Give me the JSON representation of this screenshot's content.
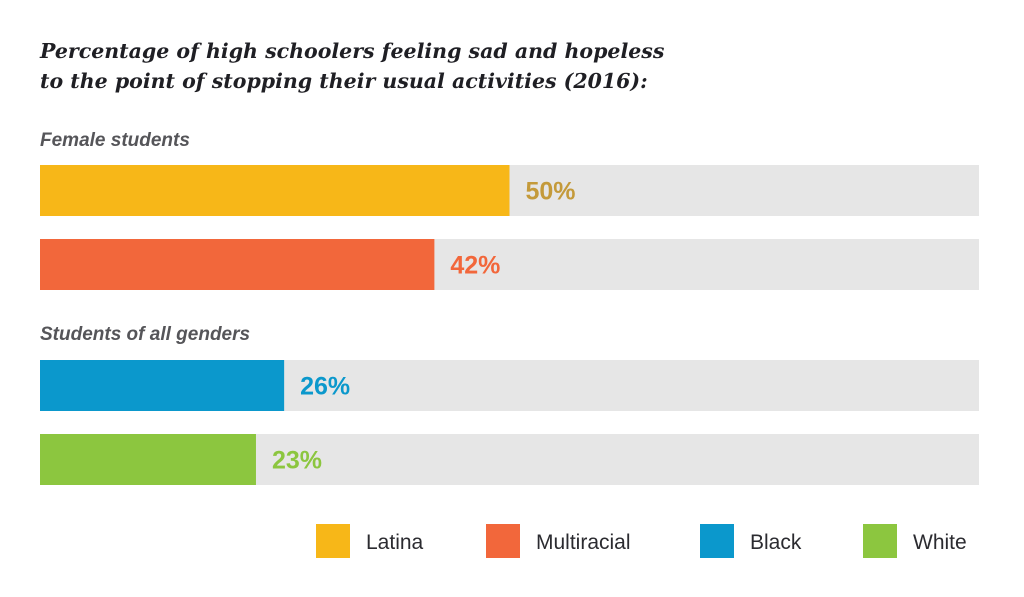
{
  "title": {
    "line1": "Percentage of high schoolers feeling sad and hopeless",
    "line2": "to the point of stopping their usual activities (2016):"
  },
  "groups": [
    {
      "heading": "Female students"
    },
    {
      "heading": "Students of all genders"
    }
  ],
  "colors": {
    "Latina": "#f7b718",
    "Multiracial": "#f2673b",
    "Black": "#0b98cc",
    "White": "#8cc63f",
    "track": "#e6e6e6",
    "Latina_label": "#c49a3a"
  },
  "chart_data": {
    "type": "bar",
    "orientation": "horizontal",
    "title": "Percentage of high schoolers feeling sad and hopeless to the point of stopping their usual activities (2016):",
    "xlim": [
      0,
      100
    ],
    "unit": "%",
    "legend": {
      "placement": "bottom-right",
      "entries": [
        "Latina",
        "Multiracial",
        "Black",
        "White"
      ]
    },
    "groups": [
      {
        "heading": "Female students",
        "bars": [
          {
            "category": "Latina",
            "value": 50,
            "label": "50%"
          },
          {
            "category": "Multiracial",
            "value": 42,
            "label": "42%"
          }
        ]
      },
      {
        "heading": "Students of all genders",
        "bars": [
          {
            "category": "Black",
            "value": 26,
            "label": "26%"
          },
          {
            "category": "White",
            "value": 23,
            "label": "23%"
          }
        ]
      }
    ]
  }
}
